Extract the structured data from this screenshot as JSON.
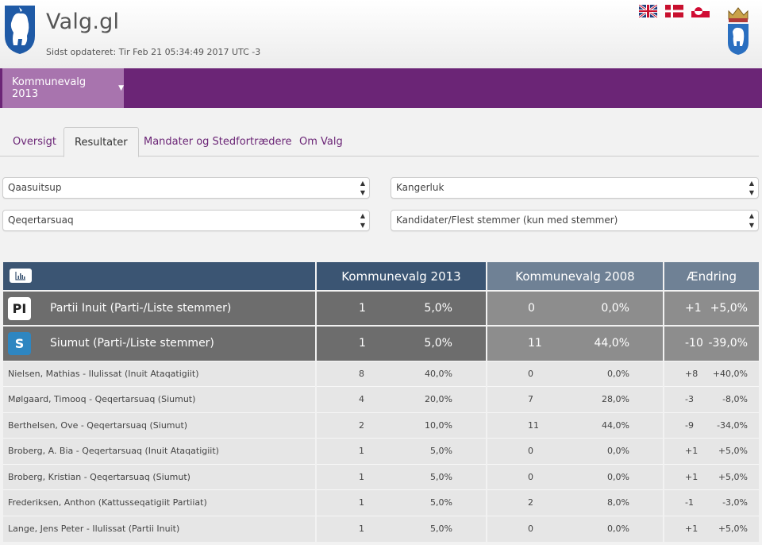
{
  "header": {
    "title": "Valg.gl",
    "updated": "Sidst opdateret: Tir Feb 21 05:34:49 2017 UTC -3",
    "flags": [
      "english-flag",
      "danish-flag",
      "greenlandic-flag"
    ]
  },
  "nav": {
    "election_menu": "Kommunevalg 2013"
  },
  "tabs": [
    {
      "label": "Oversigt"
    },
    {
      "label": "Resultater"
    },
    {
      "label": "Mandater og Stedfortrædere"
    },
    {
      "label": "Om Valg"
    }
  ],
  "filters": {
    "municipality": "Qaasuitsup",
    "district": "Kangerluk",
    "area": "Qeqertarsuaq",
    "view": "Kandidater/Flest stemmer (kun med stemmer)"
  },
  "table": {
    "col_2013": "Kommunevalg 2013",
    "col_2008": "Kommunevalg 2008",
    "col_change": "Ændring",
    "parties": [
      {
        "badge": "PI",
        "name": "Partii Inuit (Parti-/Liste stemmer)",
        "v13": "1",
        "p13": "5,0%",
        "v08": "0",
        "p08": "0,0%",
        "dv": "+1",
        "dp": "+5,0%"
      },
      {
        "badge": "S",
        "name": "Siumut (Parti-/Liste stemmer)",
        "v13": "1",
        "p13": "5,0%",
        "v08": "11",
        "p08": "44,0%",
        "dv": "-10",
        "dp": "-39,0%"
      }
    ],
    "candidates": [
      {
        "name": "Nielsen, Mathias - Ilulissat (Inuit Ataqatigiit)",
        "v13": "8",
        "p13": "40,0%",
        "v08": "0",
        "p08": "0,0%",
        "dv": "+8",
        "dp": "+40,0%"
      },
      {
        "name": "Mølgaard, Timooq - Qeqertarsuaq (Siumut)",
        "v13": "4",
        "p13": "20,0%",
        "v08": "7",
        "p08": "28,0%",
        "dv": "-3",
        "dp": "-8,0%"
      },
      {
        "name": "Berthelsen, Ove - Qeqertarsuaq (Siumut)",
        "v13": "2",
        "p13": "10,0%",
        "v08": "11",
        "p08": "44,0%",
        "dv": "-9",
        "dp": "-34,0%"
      },
      {
        "name": "Broberg, A. Bia - Qeqertarsuaq (Inuit Ataqatigiit)",
        "v13": "1",
        "p13": "5,0%",
        "v08": "0",
        "p08": "0,0%",
        "dv": "+1",
        "dp": "+5,0%"
      },
      {
        "name": "Broberg, Kristian - Qeqertarsuaq (Siumut)",
        "v13": "1",
        "p13": "5,0%",
        "v08": "0",
        "p08": "0,0%",
        "dv": "+1",
        "dp": "+5,0%"
      },
      {
        "name": "Frederiksen, Anthon (Kattusseqatigiit Partiiat)",
        "v13": "1",
        "p13": "5,0%",
        "v08": "2",
        "p08": "8,0%",
        "dv": "-1",
        "dp": "-3,0%"
      },
      {
        "name": "Lange, Jens Peter - Ilulissat (Partii Inuit)",
        "v13": "1",
        "p13": "5,0%",
        "v08": "0",
        "p08": "0,0%",
        "dv": "+1",
        "dp": "+5,0%"
      }
    ]
  }
}
